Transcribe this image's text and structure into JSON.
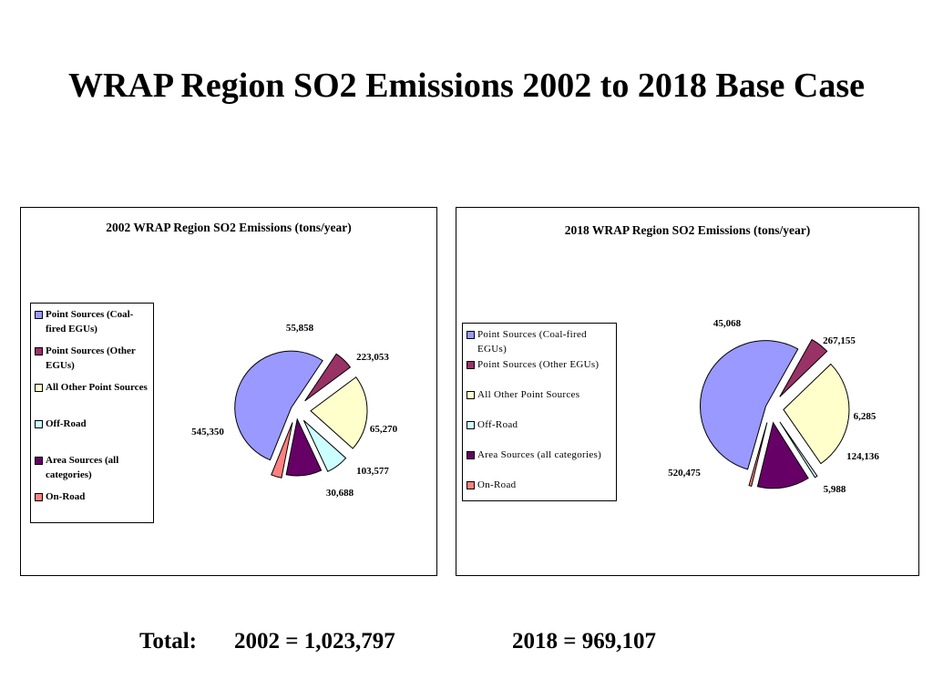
{
  "slide": {
    "title": "WRAP Region SO2 Emissions 2002 to 2018 Base Case",
    "total_label": "Total:",
    "total_2002": "2002 = 1,023,797",
    "total_2018": "2018 = 969,107"
  },
  "chart_data": [
    {
      "type": "pie",
      "title": "2002 WRAP Region SO2 Emissions (tons/year)",
      "legend_position": "left",
      "slices": [
        {
          "label": "Point Sources (Coal-fired EGUs)",
          "value": 545350,
          "value_label": "545,350",
          "color": "#9999FF"
        },
        {
          "label": "Point Sources (Other EGUs)",
          "value": 55858,
          "value_label": "55,858",
          "color": "#993366"
        },
        {
          "label": "All Other Point Sources",
          "value": 223053,
          "value_label": "223,053",
          "color": "#FFFFCC"
        },
        {
          "label": "Off-Road",
          "value": 65270,
          "value_label": "65,270",
          "color": "#CCFFFF"
        },
        {
          "label": "Area Sources (all categories)",
          "value": 103577,
          "value_label": "103,577",
          "color": "#660066"
        },
        {
          "label": "On-Road",
          "value": 30688,
          "value_label": "30,688",
          "color": "#FF8080"
        }
      ]
    },
    {
      "type": "pie",
      "title": "2018 WRAP Region SO2 Emissions (tons/year)",
      "legend_position": "left",
      "slices": [
        {
          "label": "Point Sources (Coal-fired EGUs)",
          "value": 520475,
          "value_label": "520,475",
          "color": "#9999FF"
        },
        {
          "label": "Point Sources (Other EGUs)",
          "value": 45068,
          "value_label": "45,068",
          "color": "#993366"
        },
        {
          "label": "All Other Point Sources",
          "value": 267155,
          "value_label": "267,155",
          "color": "#FFFFCC"
        },
        {
          "label": "Off-Road",
          "value": 6285,
          "value_label": "6,285",
          "color": "#CCFFFF"
        },
        {
          "label": "Area Sources (all categories)",
          "value": 124136,
          "value_label": "124,136",
          "color": "#660066"
        },
        {
          "label": "On-Road",
          "value": 5988,
          "value_label": "5,988",
          "color": "#FF8080"
        }
      ]
    }
  ]
}
